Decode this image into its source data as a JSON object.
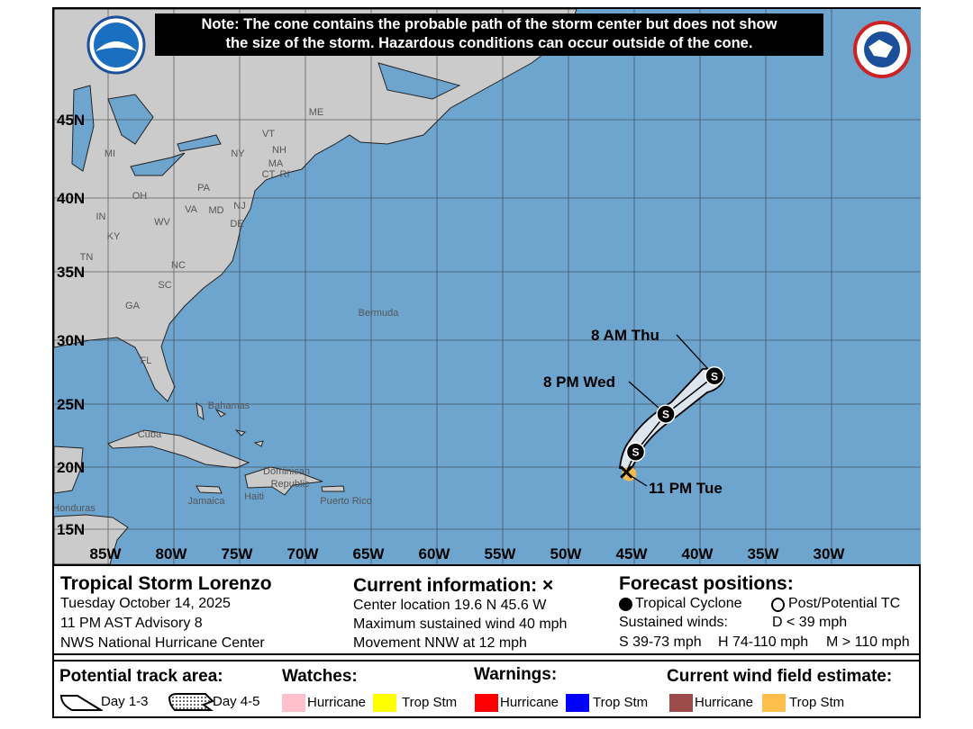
{
  "note": {
    "line1": "Note: The cone contains the probable path of the storm center but does not show",
    "line2": "the size of the storm. Hazardous conditions can occur outside of the cone."
  },
  "logos": {
    "left": "NOAA",
    "right": "NATIONAL WEATHER SERVICE"
  },
  "map": {
    "colors": {
      "ocean": "#6ea5cf",
      "land": "#cbcbcb",
      "cone": "#dde6ee",
      "wind_field": "#f3b94e"
    },
    "lat_labels": [
      "45N",
      "40N",
      "35N",
      "30N",
      "25N",
      "20N",
      "15N"
    ],
    "lon_labels": [
      "85W",
      "80W",
      "75W",
      "70W",
      "65W",
      "60W",
      "55W",
      "50W",
      "45W",
      "40W",
      "35W",
      "30W"
    ],
    "place_labels": [
      "ME",
      "VT",
      "NH",
      "NY",
      "MA",
      "CT",
      "RI",
      "MI",
      "PA",
      "NJ",
      "OH",
      "MD",
      "DE",
      "IN",
      "WV",
      "VA",
      "KY",
      "TN",
      "NC",
      "SC",
      "GA",
      "FL",
      "Bermuda",
      "Bahamas",
      "Cuba",
      "Dominican",
      "Republic",
      "Haiti",
      "Puerto Rico",
      "Jamaica",
      "Honduras"
    ],
    "track": {
      "current": {
        "lat": 19.6,
        "lon": -45.6,
        "label": "11 PM Tue",
        "symbol": "x"
      },
      "forecast": [
        {
          "lat": 21.2,
          "lon": -44.9,
          "symbol": "S",
          "label": ""
        },
        {
          "lat": 24.2,
          "lon": -42.6,
          "symbol": "S",
          "label": "8 PM Wed"
        },
        {
          "lat": 27.2,
          "lon": -38.9,
          "symbol": "S",
          "label": "8 AM Thu"
        }
      ]
    }
  },
  "info": {
    "storm_name": "Tropical Storm Lorenzo",
    "date": "Tuesday October 14, 2025",
    "advisory": "11 PM AST Advisory 8",
    "center": "NWS National Hurricane Center",
    "current_title": "Current information: ×",
    "center_location": "Center location 19.6 N 45.6 W",
    "max_wind": "Maximum sustained wind 40 mph",
    "movement": "Movement NNW at 12 mph",
    "forecast_title": "Forecast positions:",
    "tc_label": "Tropical Cyclone",
    "post_tc_label": "Post/Potential TC",
    "sustained_winds": "Sustained winds:",
    "d_label": "D < 39 mph",
    "s_label": "S 39-73 mph",
    "h_label": "H 74-110 mph",
    "m_label": "M > 110 mph"
  },
  "legend": {
    "track_title": "Potential track area:",
    "day13": "Day 1-3",
    "day45": "Day 4-5",
    "watches_title": "Watches:",
    "warnings_title": "Warnings:",
    "wind_title": "Current wind field estimate:",
    "items": [
      {
        "label": "Hurricane",
        "color": "#ffc0cb"
      },
      {
        "label": "Trop Stm",
        "color": "#ffff00"
      },
      {
        "label": "Hurricane",
        "color": "#ff0000"
      },
      {
        "label": "Trop Stm",
        "color": "#0000ff"
      },
      {
        "label": "Hurricane",
        "color": "#9c4a4a"
      },
      {
        "label": "Trop Stm",
        "color": "#ffbf4d"
      }
    ]
  }
}
